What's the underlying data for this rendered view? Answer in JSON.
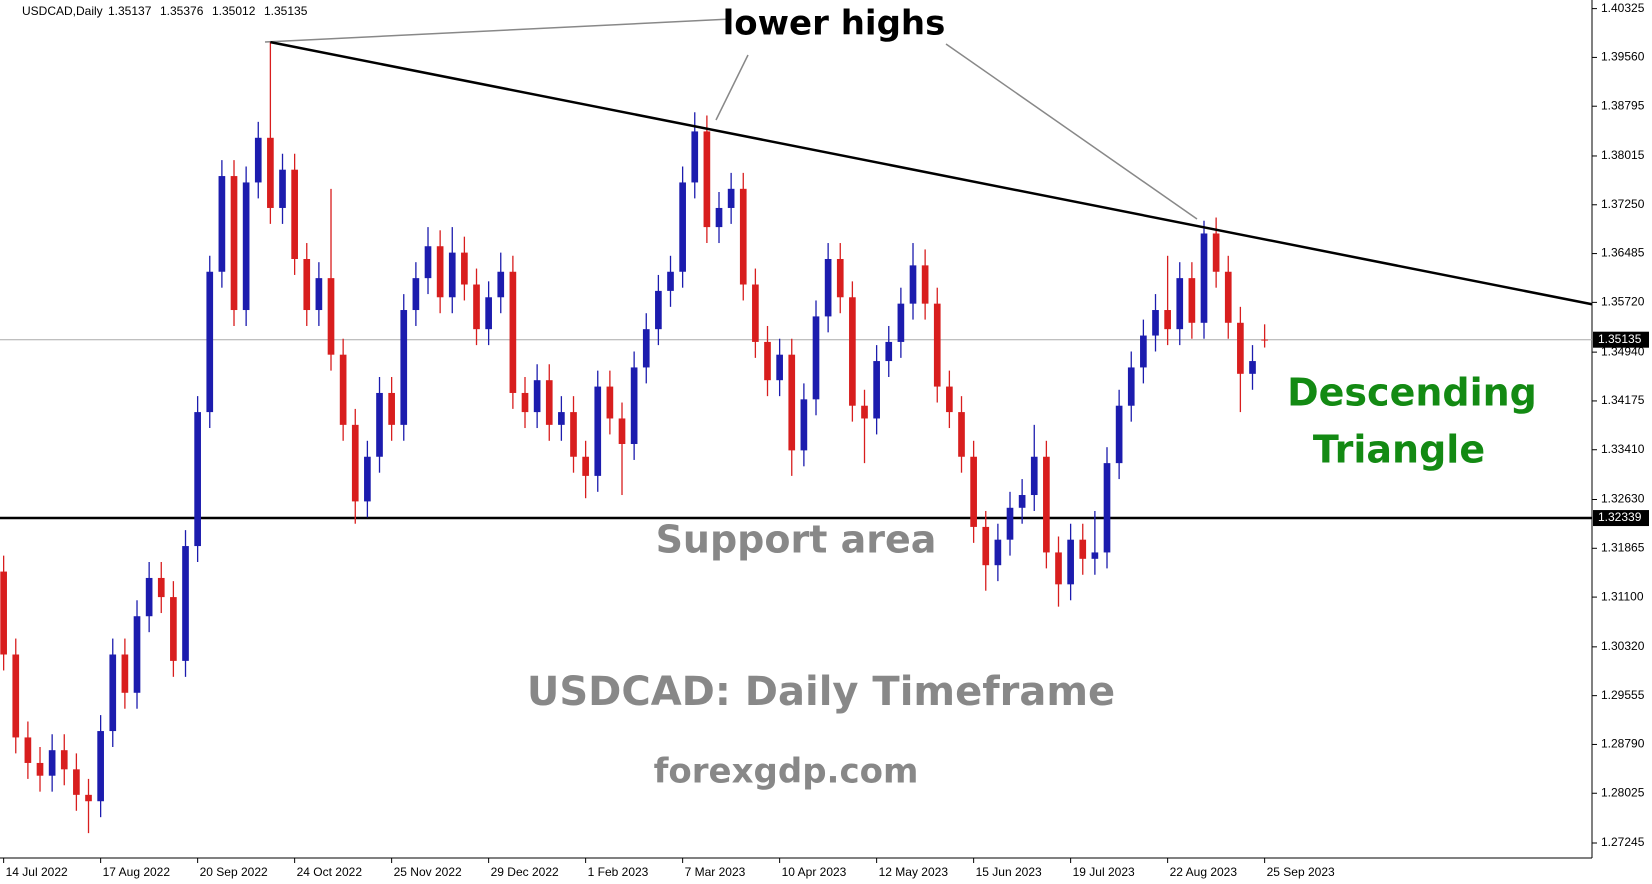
{
  "chart_data": {
    "type": "candlestick",
    "title": "USDCAD,Daily",
    "up_color": "#1c1cae",
    "down_color": "#d81e1e",
    "ylim": [
      1.2701,
      1.4046
    ],
    "xlim": [
      -0.3,
      131
    ],
    "yticks": [
      1.40325,
      {
        "value": 1.3956,
        "label": "1.39560"
      },
      1.38795,
      1.38015,
      {
        "value": 1.3725,
        "label": "1.37250"
      },
      1.36485,
      {
        "value": 1.3572,
        "label": "1.35720"
      },
      {
        "value": 1.3494,
        "label": "1.34940"
      },
      1.34175,
      {
        "value": 1.3341,
        "label": "1.33410"
      },
      {
        "value": 1.3263,
        "label": "1.32630"
      },
      1.31865,
      {
        "value": 1.311,
        "label": "1.31100"
      },
      {
        "value": 1.3032,
        "label": "1.30320"
      },
      1.29555,
      {
        "value": 1.2879,
        "label": "1.28790"
      },
      1.28025,
      1.27245
    ],
    "xticks": [
      {
        "value": 0,
        "label": "14 Jul 2022"
      },
      {
        "value": 8,
        "label": "17 Aug 2022"
      },
      {
        "value": 16,
        "label": "20 Sep 2022"
      },
      {
        "value": 24,
        "label": "24 Oct 2022"
      },
      {
        "value": 32,
        "label": "25 Nov 2022"
      },
      {
        "value": 40,
        "label": "29 Dec 2022"
      },
      {
        "value": 48,
        "label": "1 Feb 2023"
      },
      {
        "value": 56,
        "label": "7 Mar 2023"
      },
      {
        "value": 64,
        "label": "10 Apr 2023"
      },
      {
        "value": 72,
        "label": "12 May 2023"
      },
      {
        "value": 80,
        "label": "15 Jun 2023"
      },
      {
        "value": 88,
        "label": "19 Jul 2023"
      },
      {
        "value": 96,
        "label": "22 Aug 2023"
      },
      {
        "value": 104,
        "label": "25 Sep 2023"
      }
    ],
    "ohlc": [
      [
        1.315,
        1.3175,
        1.2995,
        1.302
      ],
      [
        1.302,
        1.3045,
        1.2865,
        1.289
      ],
      [
        1.289,
        1.2915,
        1.2825,
        1.285
      ],
      [
        1.285,
        1.2875,
        1.2805,
        1.283
      ],
      [
        1.283,
        1.2895,
        1.2805,
        1.287
      ],
      [
        1.287,
        1.2895,
        1.2815,
        1.284
      ],
      [
        1.284,
        1.2865,
        1.2775,
        1.28
      ],
      [
        1.28,
        1.2825,
        1.274,
        1.279
      ],
      [
        1.279,
        1.2925,
        1.2765,
        1.29
      ],
      [
        1.29,
        1.3045,
        1.2875,
        1.302
      ],
      [
        1.302,
        1.3045,
        1.2935,
        1.296
      ],
      [
        1.296,
        1.3105,
        1.2935,
        1.308
      ],
      [
        1.308,
        1.3165,
        1.3055,
        1.314
      ],
      [
        1.314,
        1.3165,
        1.3085,
        1.311
      ],
      [
        1.311,
        1.3135,
        1.2985,
        1.301
      ],
      [
        1.301,
        1.3215,
        1.2985,
        1.319
      ],
      [
        1.319,
        1.3425,
        1.3165,
        1.34
      ],
      [
        1.34,
        1.3645,
        1.3375,
        1.362
      ],
      [
        1.362,
        1.3795,
        1.3595,
        1.377
      ],
      [
        1.377,
        1.3795,
        1.3535,
        1.356
      ],
      [
        1.356,
        1.3785,
        1.3535,
        1.376
      ],
      [
        1.376,
        1.3855,
        1.3735,
        1.383
      ],
      [
        1.383,
        1.398,
        1.3695,
        1.372
      ],
      [
        1.372,
        1.3805,
        1.3695,
        1.378
      ],
      [
        1.378,
        1.3805,
        1.3615,
        1.364
      ],
      [
        1.364,
        1.3665,
        1.3535,
        1.356
      ],
      [
        1.356,
        1.3635,
        1.3535,
        1.361
      ],
      [
        1.361,
        1.375,
        1.3465,
        1.349
      ],
      [
        1.349,
        1.3515,
        1.3355,
        1.338
      ],
      [
        1.338,
        1.3405,
        1.3225,
        1.326
      ],
      [
        1.326,
        1.3355,
        1.3235,
        1.333
      ],
      [
        1.333,
        1.3455,
        1.3305,
        1.343
      ],
      [
        1.343,
        1.3455,
        1.3355,
        1.338
      ],
      [
        1.338,
        1.3585,
        1.3355,
        1.356
      ],
      [
        1.356,
        1.3635,
        1.3535,
        1.361
      ],
      [
        1.361,
        1.369,
        1.3585,
        1.366
      ],
      [
        1.366,
        1.3685,
        1.3555,
        1.358
      ],
      [
        1.358,
        1.369,
        1.3555,
        1.365
      ],
      [
        1.365,
        1.3675,
        1.3575,
        1.36
      ],
      [
        1.36,
        1.3625,
        1.3505,
        1.353
      ],
      [
        1.353,
        1.3605,
        1.3505,
        1.358
      ],
      [
        1.358,
        1.365,
        1.3555,
        1.362
      ],
      [
        1.362,
        1.3645,
        1.3405,
        1.343
      ],
      [
        1.343,
        1.3455,
        1.3375,
        1.34
      ],
      [
        1.34,
        1.3475,
        1.3375,
        1.345
      ],
      [
        1.345,
        1.3475,
        1.3355,
        1.338
      ],
      [
        1.338,
        1.3425,
        1.3355,
        1.34
      ],
      [
        1.34,
        1.3425,
        1.3305,
        1.333
      ],
      [
        1.333,
        1.3355,
        1.3265,
        1.33
      ],
      [
        1.33,
        1.3465,
        1.3275,
        1.344
      ],
      [
        1.344,
        1.3465,
        1.3365,
        1.339
      ],
      [
        1.339,
        1.3415,
        1.327,
        1.335
      ],
      [
        1.335,
        1.3495,
        1.3325,
        1.347
      ],
      [
        1.347,
        1.3555,
        1.3445,
        1.353
      ],
      [
        1.353,
        1.3615,
        1.3505,
        1.359
      ],
      [
        1.359,
        1.3645,
        1.3565,
        1.362
      ],
      [
        1.362,
        1.3785,
        1.3595,
        1.376
      ],
      [
        1.376,
        1.387,
        1.3735,
        1.384
      ],
      [
        1.384,
        1.3865,
        1.3665,
        1.369
      ],
      [
        1.369,
        1.3745,
        1.3665,
        1.372
      ],
      [
        1.372,
        1.3775,
        1.3695,
        1.375
      ],
      [
        1.375,
        1.3775,
        1.3575,
        1.36
      ],
      [
        1.36,
        1.3625,
        1.3485,
        1.351
      ],
      [
        1.351,
        1.3535,
        1.3425,
        1.345
      ],
      [
        1.345,
        1.3515,
        1.3425,
        1.349
      ],
      [
        1.349,
        1.3515,
        1.33,
        1.334
      ],
      [
        1.334,
        1.3445,
        1.3315,
        1.342
      ],
      [
        1.342,
        1.3575,
        1.3395,
        1.355
      ],
      [
        1.355,
        1.3665,
        1.3525,
        1.364
      ],
      [
        1.364,
        1.3665,
        1.3555,
        1.358
      ],
      [
        1.358,
        1.3605,
        1.3385,
        1.341
      ],
      [
        1.341,
        1.3435,
        1.332,
        1.339
      ],
      [
        1.339,
        1.3505,
        1.3365,
        1.348
      ],
      [
        1.348,
        1.3535,
        1.3455,
        1.351
      ],
      [
        1.351,
        1.3595,
        1.3485,
        1.357
      ],
      [
        1.357,
        1.3665,
        1.3545,
        1.363
      ],
      [
        1.363,
        1.3655,
        1.3545,
        1.357
      ],
      [
        1.357,
        1.3595,
        1.3415,
        1.344
      ],
      [
        1.344,
        1.3465,
        1.3375,
        1.34
      ],
      [
        1.34,
        1.3425,
        1.3305,
        1.333
      ],
      [
        1.333,
        1.3355,
        1.3195,
        1.322
      ],
      [
        1.322,
        1.3245,
        1.312,
        1.316
      ],
      [
        1.316,
        1.3225,
        1.3135,
        1.32
      ],
      [
        1.32,
        1.3275,
        1.3175,
        1.325
      ],
      [
        1.325,
        1.3295,
        1.3225,
        1.327
      ],
      [
        1.327,
        1.338,
        1.3245,
        1.333
      ],
      [
        1.333,
        1.3355,
        1.3155,
        1.318
      ],
      [
        1.318,
        1.3205,
        1.3095,
        1.313
      ],
      [
        1.313,
        1.3225,
        1.3105,
        1.32
      ],
      [
        1.32,
        1.3225,
        1.3145,
        1.317
      ],
      [
        1.317,
        1.3245,
        1.3145,
        1.318
      ],
      [
        1.318,
        1.3345,
        1.3155,
        1.332
      ],
      [
        1.332,
        1.3435,
        1.3295,
        1.341
      ],
      [
        1.341,
        1.3495,
        1.3385,
        1.347
      ],
      [
        1.347,
        1.3545,
        1.3445,
        1.352
      ],
      [
        1.352,
        1.3585,
        1.3495,
        1.356
      ],
      [
        1.356,
        1.3645,
        1.3505,
        1.353
      ],
      [
        1.353,
        1.3635,
        1.3505,
        1.361
      ],
      [
        1.361,
        1.3635,
        1.3515,
        1.354
      ],
      [
        1.354,
        1.37,
        1.3515,
        1.368
      ],
      [
        1.368,
        1.3705,
        1.3595,
        1.362
      ],
      [
        1.362,
        1.3645,
        1.3515,
        1.354
      ],
      [
        1.354,
        1.3565,
        1.34,
        1.346
      ],
      [
        1.346,
        1.3505,
        1.3435,
        1.348
      ],
      [
        1.35137,
        1.35376,
        1.35012,
        1.35135
      ]
    ],
    "support_level": 1.32339,
    "trendline": [
      [
        22,
        1.398
      ],
      [
        131,
        1.3569
      ]
    ],
    "annotations": {
      "lower_highs": "lower highs",
      "pattern": [
        "Descending",
        "Triangle"
      ],
      "support": "Support area",
      "caption": "USDCAD: Daily Timeframe",
      "source": "forexgdp.com"
    }
  }
}
